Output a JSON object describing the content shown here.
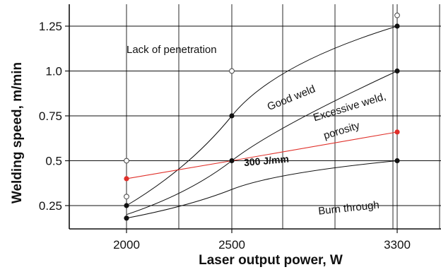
{
  "chart_data": {
    "type": "line",
    "xlabel": "Laser output power, W",
    "ylabel": "Welding speed, m/min",
    "x_ticks": [
      2000,
      2500,
      3300
    ],
    "x_tick_labels": [
      "2000",
      "2500",
      "3300"
    ],
    "y_ticks": [
      0.25,
      0.5,
      0.75,
      1.0,
      1.25
    ],
    "y_tick_labels": [
      "0.25",
      "0.5",
      "0.75",
      "1.0",
      "1.25"
    ],
    "xlim": [
      1850,
      3500
    ],
    "ylim": [
      0.1,
      1.37
    ],
    "grid": true,
    "colors": {
      "curve": "#111111",
      "constant_energy_line": "#e0302a",
      "grid": "#111111"
    },
    "series": [
      {
        "key": "upper_boundary",
        "x": [
          2000,
          2500,
          3300
        ],
        "y": [
          0.25,
          0.75,
          1.25
        ],
        "marker": "filled"
      },
      {
        "key": "middle_boundary",
        "x": [
          2000,
          2500,
          3300
        ],
        "y": [
          0.2,
          0.5,
          1.0
        ],
        "marker": "filled"
      },
      {
        "key": "lower_boundary",
        "x": [
          2000,
          2500,
          3300
        ],
        "y": [
          0.18,
          0.34,
          0.5
        ],
        "marker": "filled"
      },
      {
        "name": "300 J/mm",
        "key": "constant_energy",
        "x": [
          2000,
          2500,
          3300
        ],
        "y": [
          0.4,
          0.5,
          0.66
        ],
        "marker": "filled",
        "color": "#e0302a"
      }
    ],
    "filled_points": [
      {
        "x": 2000,
        "y": 0.25
      },
      {
        "x": 2000,
        "y": 0.18
      },
      {
        "x": 2500,
        "y": 0.75
      },
      {
        "x": 2500,
        "y": 0.5
      },
      {
        "x": 3300,
        "y": 1.25
      },
      {
        "x": 3300,
        "y": 1.0
      },
      {
        "x": 3300,
        "y": 0.5
      }
    ],
    "open_points": [
      {
        "x": 2000,
        "y": 0.5
      },
      {
        "x": 2000,
        "y": 0.3
      },
      {
        "x": 2500,
        "y": 1.0
      },
      {
        "x": 3300,
        "y": 1.31
      }
    ],
    "red_points": [
      {
        "x": 2000,
        "y": 0.4
      },
      {
        "x": 3300,
        "y": 0.66
      }
    ],
    "annotations": [
      {
        "key": "lack_of_penetration",
        "text": "Lack of penetration",
        "x": 2000,
        "y": 1.1,
        "rotate": 0
      },
      {
        "key": "good_weld",
        "text": "Good weld",
        "x": 2680,
        "y": 0.78,
        "rotate": -22
      },
      {
        "key": "excessive_weld_1",
        "text": "Excessive weld,",
        "x": 2900,
        "y": 0.72,
        "rotate": -17
      },
      {
        "key": "excessive_weld_2",
        "text": "porosity",
        "x": 2950,
        "y": 0.62,
        "rotate": -17
      },
      {
        "key": "j_per_mm",
        "text": "300 J/mm",
        "x": 2560,
        "y": 0.47,
        "rotate": -5
      },
      {
        "key": "burn_through",
        "text": "Burn through",
        "x": 2920,
        "y": 0.2,
        "rotate": -6
      }
    ]
  }
}
